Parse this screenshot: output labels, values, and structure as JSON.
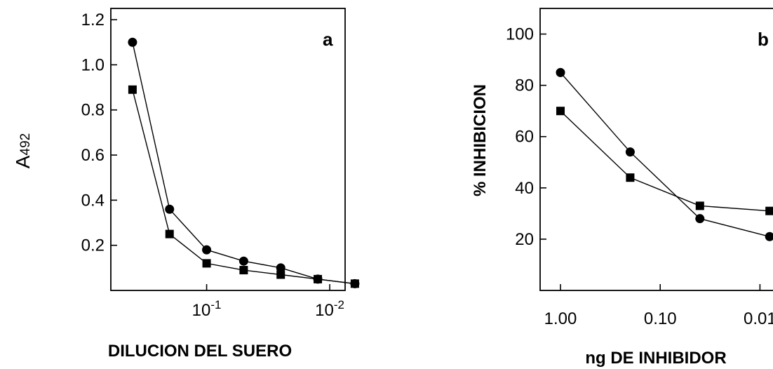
{
  "chart_data": [
    {
      "type": "line",
      "panel_label": "a",
      "xlabel": "DILUCION DEL SUERO",
      "ylabel_main": "A",
      "ylabel_sub": "492",
      "x_scale": "log-reversed",
      "xlim": [
        0.6,
        0.0075
      ],
      "ylim": [
        0,
        1.25
      ],
      "x_ticks": [
        {
          "value": 0.1,
          "base": "10",
          "exp": "-1"
        },
        {
          "value": 0.01,
          "base": "10",
          "exp": "-2"
        }
      ],
      "y_ticks": [
        {
          "value": 0.2,
          "label": "0.2"
        },
        {
          "value": 0.4,
          "label": "0.4"
        },
        {
          "value": 0.6,
          "label": "0.6"
        },
        {
          "value": 0.8,
          "label": "0.8"
        },
        {
          "value": 1.0,
          "label": "1.0"
        },
        {
          "value": 1.2,
          "label": "1.2"
        }
      ],
      "grid": false,
      "series": [
        {
          "marker": "circle",
          "x": [
            0.4,
            0.2,
            0.1,
            0.05,
            0.025,
            0.0125,
            0.00625
          ],
          "y": [
            1.1,
            0.36,
            0.18,
            0.13,
            0.1,
            0.05,
            0.03
          ]
        },
        {
          "marker": "square",
          "x": [
            0.4,
            0.2,
            0.1,
            0.05,
            0.025,
            0.0125,
            0.00625
          ],
          "y": [
            0.89,
            0.25,
            0.12,
            0.09,
            0.07,
            0.05,
            0.03
          ]
        }
      ]
    },
    {
      "type": "line",
      "panel_label": "b",
      "xlabel": "ng DE INHIBIDOR",
      "ylabel": "% INHIBICION",
      "x_scale": "log-reversed",
      "xlim": [
        1.6,
        0.0065
      ],
      "ylim": [
        0,
        110
      ],
      "x_ticks": [
        {
          "value": 1.0,
          "label": "1.00"
        },
        {
          "value": 0.1,
          "label": "0.10"
        },
        {
          "value": 0.01,
          "label": "0.01"
        }
      ],
      "y_ticks": [
        {
          "value": 20,
          "label": "20"
        },
        {
          "value": 40,
          "label": "40"
        },
        {
          "value": 60,
          "label": "60"
        },
        {
          "value": 80,
          "label": "80"
        },
        {
          "value": 100,
          "label": "100"
        }
      ],
      "grid": false,
      "series": [
        {
          "marker": "circle",
          "x": [
            1.0,
            0.2,
            0.04,
            0.008
          ],
          "y": [
            85,
            54,
            28,
            21
          ]
        },
        {
          "marker": "square",
          "x": [
            1.0,
            0.2,
            0.04,
            0.008
          ],
          "y": [
            70,
            44,
            33,
            31
          ]
        }
      ]
    }
  ]
}
